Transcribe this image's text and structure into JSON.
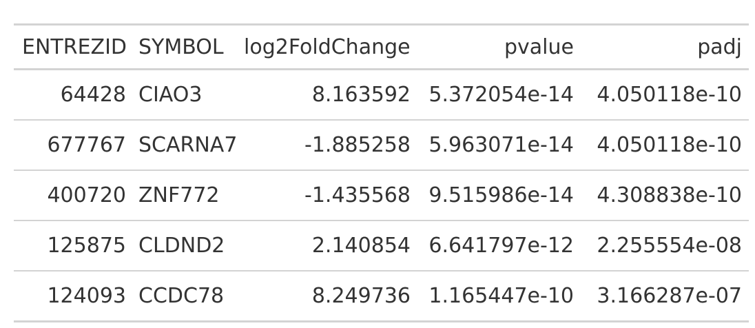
{
  "table": {
    "columns": [
      {
        "key": "entrezid",
        "label": "ENTREZID"
      },
      {
        "key": "symbol",
        "label": "SYMBOL"
      },
      {
        "key": "log2foldchange",
        "label": "log2FoldChange"
      },
      {
        "key": "pvalue",
        "label": "pvalue"
      },
      {
        "key": "padj",
        "label": "padj"
      }
    ],
    "rows": [
      {
        "entrezid": "64428",
        "symbol": "CIAO3",
        "log2foldchange": "8.163592",
        "pvalue": "5.372054e-14",
        "padj": "4.050118e-10"
      },
      {
        "entrezid": "677767",
        "symbol": "SCARNA7",
        "log2foldchange": "-1.885258",
        "pvalue": "5.963071e-14",
        "padj": "4.050118e-10"
      },
      {
        "entrezid": "400720",
        "symbol": "ZNF772",
        "log2foldchange": "-1.435568",
        "pvalue": "9.515986e-14",
        "padj": "4.308838e-10"
      },
      {
        "entrezid": "125875",
        "symbol": "CLDND2",
        "log2foldchange": "2.140854",
        "pvalue": "6.641797e-12",
        "padj": "2.255554e-08"
      },
      {
        "entrezid": "124093",
        "symbol": "CCDC78",
        "log2foldchange": "8.249736",
        "pvalue": "1.165447e-10",
        "padj": "3.166287e-07"
      }
    ]
  }
}
